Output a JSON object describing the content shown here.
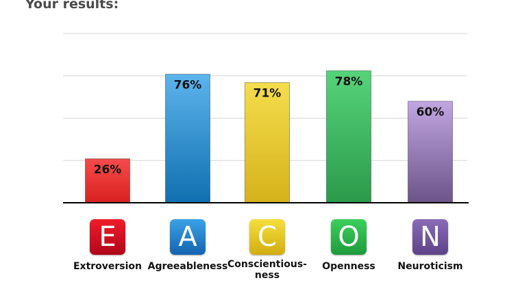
{
  "heading": "Your results:",
  "chart_data": {
    "type": "bar",
    "ylim": [
      0,
      100
    ],
    "grid": true,
    "categories": [
      {
        "letter": "E",
        "name": "Extroversion",
        "value": 26,
        "label": "26%",
        "color_top": "#f64b4b",
        "color_bottom": "#d8201f",
        "tile_top": "#f01d2a",
        "tile_bottom": "#b0051a"
      },
      {
        "letter": "A",
        "name": "Agreeableness",
        "value": 76,
        "label": "76%",
        "color_top": "#5db4ec",
        "color_bottom": "#0f6fb0",
        "tile_top": "#3aa3e6",
        "tile_bottom": "#1463b0"
      },
      {
        "letter": "C",
        "name": "Conscientious-ness",
        "value": 71,
        "label": "71%",
        "color_top": "#f5dd4c",
        "color_bottom": "#d5b21b",
        "tile_top": "#f5df3d",
        "tile_bottom": "#d2ad10"
      },
      {
        "letter": "O",
        "name": "Openness",
        "value": 78,
        "label": "78%",
        "color_top": "#56d37a",
        "color_bottom": "#2b9a4a",
        "tile_top": "#3ccf5d",
        "tile_bottom": "#1e9a3c"
      },
      {
        "letter": "N",
        "name": "Neuroticism",
        "value": 60,
        "label": "60%",
        "color_top": "#c2a6e2",
        "color_bottom": "#6b5488",
        "tile_top": "#8a6cb8",
        "tile_bottom": "#5d4288"
      }
    ]
  }
}
